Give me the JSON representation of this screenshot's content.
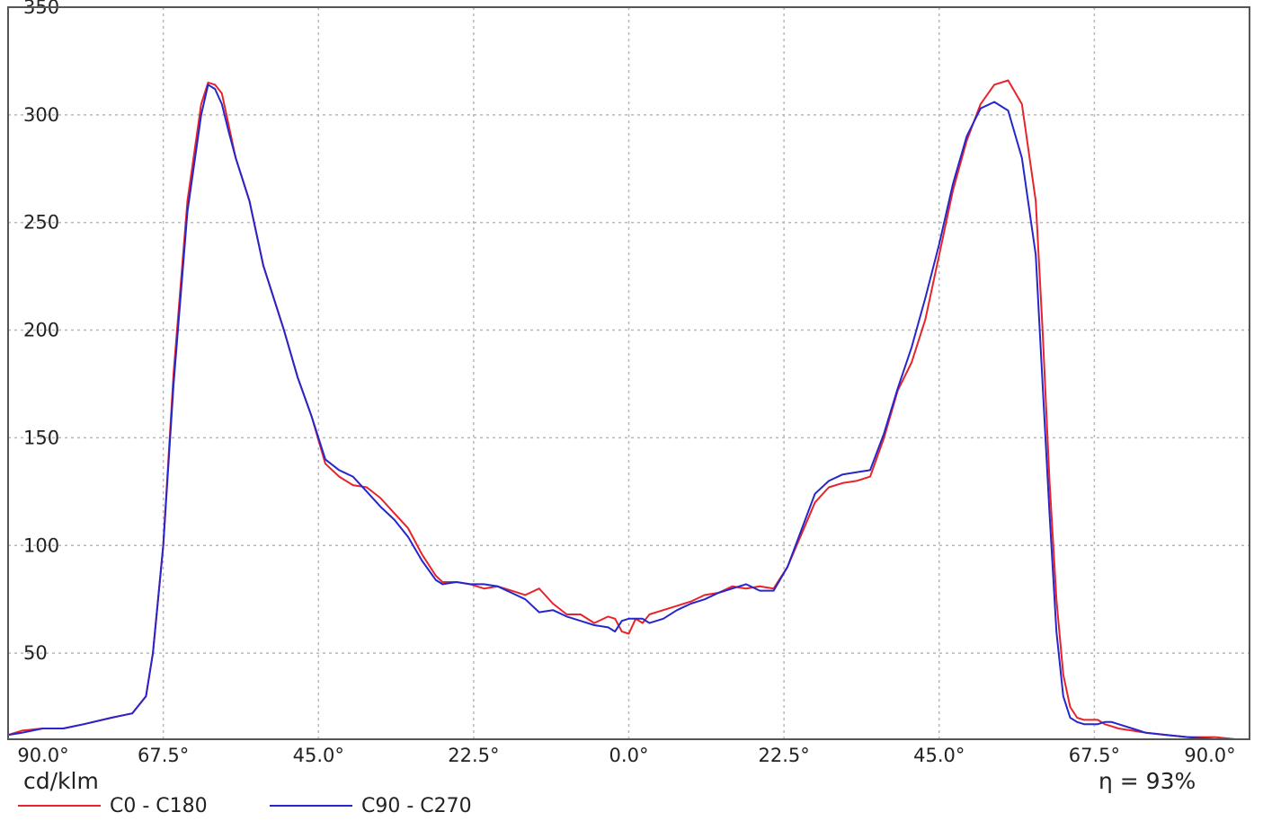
{
  "chart_data": {
    "type": "line",
    "title": "",
    "ylabel": "cd/klm",
    "efficiency": "η = 93%",
    "y_ticks": [
      {
        "value": 50,
        "label": "50"
      },
      {
        "value": 100,
        "label": "100"
      },
      {
        "value": 150,
        "label": "150"
      },
      {
        "value": 200,
        "label": "200"
      },
      {
        "value": 250,
        "label": "250"
      },
      {
        "value": 300,
        "label": "300"
      },
      {
        "value": 350,
        "label": "350"
      }
    ],
    "x_ticks": [
      {
        "value": -90,
        "label": "90.0°"
      },
      {
        "value": -67.5,
        "label": "67.5°"
      },
      {
        "value": -45,
        "label": "45.0°"
      },
      {
        "value": -22.5,
        "label": "22.5°"
      },
      {
        "value": 0,
        "label": "0.0°"
      },
      {
        "value": 22.5,
        "label": "22.5°"
      },
      {
        "value": 45,
        "label": "45.0°"
      },
      {
        "value": 67.5,
        "label": "67.5°"
      },
      {
        "value": 90,
        "label": "90.0°"
      }
    ],
    "xlim": [
      -90,
      90
    ],
    "ylim": [
      10,
      350
    ],
    "grid": true,
    "legend_position": "bottom-left",
    "series": [
      {
        "name": "C0 - C180",
        "color": "#e8242b",
        "x": [
          -90,
          -88,
          -85,
          -82,
          -79,
          -75,
          -72,
          -70,
          -69,
          -67.5,
          -66,
          -64,
          -62,
          -61,
          -60,
          -59,
          -58,
          -57,
          -55,
          -53,
          -50,
          -48,
          -46,
          -44,
          -42,
          -40,
          -38,
          -36,
          -34,
          -32,
          -30,
          -28,
          -27,
          -25,
          -23,
          -21,
          -19,
          -17,
          -15,
          -13,
          -11,
          -9,
          -7,
          -5,
          -3,
          -2,
          -1,
          0,
          1,
          2,
          3,
          5,
          7,
          9,
          11,
          13,
          15,
          17,
          19,
          21,
          23,
          25,
          27,
          29,
          31,
          33,
          35,
          37,
          39,
          41,
          43,
          45,
          47,
          49,
          51,
          53,
          55,
          57,
          59,
          60,
          61,
          62,
          63,
          64,
          65,
          66,
          67,
          68,
          69,
          70,
          71,
          73,
          75,
          78,
          81,
          85,
          88,
          90
        ],
        "y": [
          12,
          14,
          15,
          15,
          17,
          20,
          22,
          30,
          50,
          100,
          180,
          260,
          305,
          315,
          314,
          310,
          295,
          280,
          260,
          230,
          200,
          178,
          160,
          138,
          132,
          128,
          127,
          122,
          115,
          108,
          96,
          86,
          83,
          83,
          82,
          80,
          81,
          79,
          77,
          80,
          73,
          68,
          68,
          64,
          67,
          66,
          60,
          59,
          66,
          64,
          68,
          70,
          72,
          74,
          77,
          78,
          81,
          80,
          81,
          80,
          90,
          105,
          120,
          127,
          129,
          130,
          132,
          150,
          172,
          185,
          205,
          235,
          265,
          288,
          305,
          314,
          316,
          305,
          260,
          200,
          130,
          75,
          40,
          25,
          20,
          19,
          19,
          19,
          17,
          16,
          15,
          14,
          13,
          12,
          11,
          11,
          10,
          10
        ]
      },
      {
        "name": "C90 - C270",
        "color": "#2626cc",
        "x": [
          -90,
          -88,
          -85,
          -82,
          -79,
          -75,
          -72,
          -70,
          -69,
          -67.5,
          -66,
          -64,
          -62,
          -61,
          -60,
          -59,
          -58,
          -57,
          -55,
          -53,
          -50,
          -48,
          -46,
          -44,
          -42,
          -40,
          -38,
          -36,
          -34,
          -32,
          -30,
          -28,
          -27,
          -25,
          -23,
          -21,
          -19,
          -17,
          -15,
          -13,
          -11,
          -9,
          -7,
          -5,
          -3,
          -2,
          -1,
          0,
          1,
          2,
          3,
          5,
          7,
          9,
          11,
          13,
          15,
          17,
          19,
          21,
          23,
          25,
          27,
          29,
          31,
          33,
          35,
          37,
          39,
          41,
          43,
          45,
          47,
          49,
          51,
          53,
          55,
          57,
          59,
          60,
          61,
          62,
          63,
          64,
          65,
          66,
          67,
          68,
          69,
          70,
          71,
          73,
          75,
          78,
          81,
          85,
          88,
          90
        ],
        "y": [
          12,
          13,
          15,
          15,
          17,
          20,
          22,
          30,
          50,
          100,
          175,
          255,
          300,
          314,
          312,
          305,
          292,
          280,
          260,
          230,
          200,
          178,
          160,
          140,
          135,
          132,
          125,
          118,
          112,
          104,
          93,
          84,
          82,
          83,
          82,
          82,
          81,
          78,
          75,
          69,
          70,
          67,
          65,
          63,
          62,
          60,
          65,
          66,
          66,
          66,
          64,
          66,
          70,
          73,
          75,
          78,
          80,
          82,
          79,
          79,
          90,
          107,
          124,
          130,
          133,
          134,
          135,
          152,
          173,
          192,
          215,
          240,
          268,
          290,
          303,
          306,
          302,
          280,
          235,
          175,
          115,
          60,
          30,
          20,
          18,
          17,
          17,
          17,
          18,
          18,
          17,
          15,
          13,
          12,
          11,
          10,
          10,
          10
        ]
      }
    ]
  }
}
